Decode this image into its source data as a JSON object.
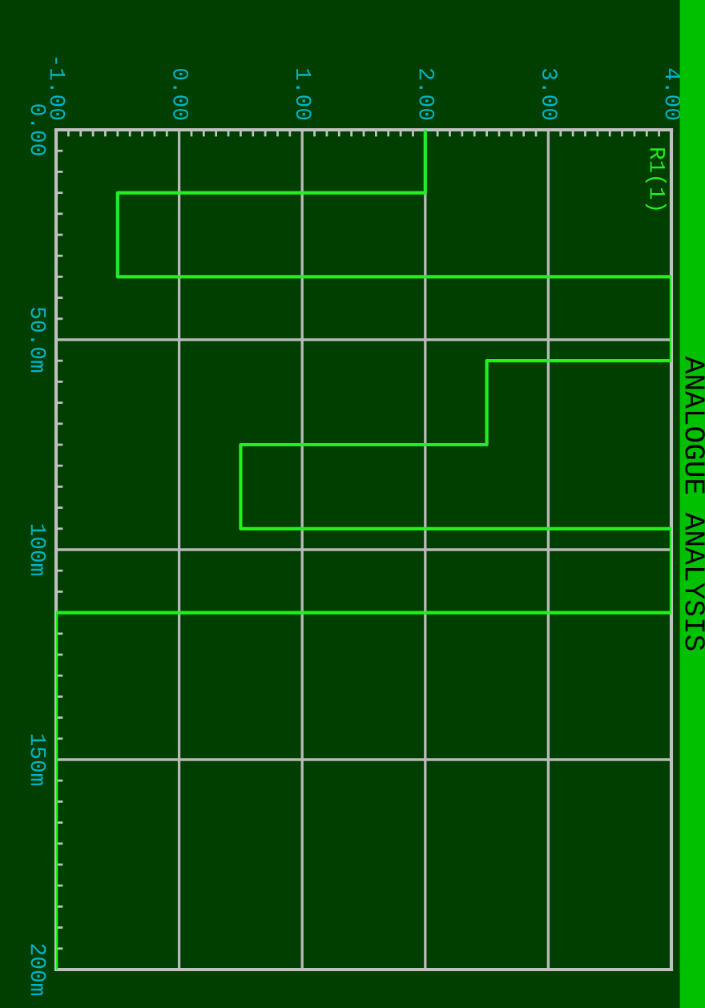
{
  "chart_data": {
    "type": "line",
    "title": "ANALOGUE ANALYSIS",
    "series": [
      {
        "name": "R1(1)",
        "color": "#22ee22",
        "x": [
          2,
          2,
          -0.5,
          -0.5,
          4,
          4,
          2.5,
          2.5,
          0.5,
          0.5,
          4,
          4,
          -1,
          -1
        ],
        "values": [
          0,
          15,
          15,
          35,
          35,
          55,
          55,
          75,
          75,
          95,
          95,
          115,
          115,
          200
        ]
      }
    ],
    "xlim": [
      -1,
      4
    ],
    "xticks": [
      {
        "value": -1,
        "label": "-1.00"
      },
      {
        "value": 0,
        "label": "0.00"
      },
      {
        "value": 1,
        "label": "1.00"
      },
      {
        "value": 2,
        "label": "2.00"
      },
      {
        "value": 3,
        "label": "3.00"
      },
      {
        "value": 4,
        "label": "4.00"
      }
    ],
    "ylim": [
      200,
      0
    ],
    "yticks": [
      {
        "value": 0,
        "label": "0.00"
      },
      {
        "value": 50,
        "label": "50.0m"
      },
      {
        "value": 100,
        "label": "100m"
      },
      {
        "value": 150,
        "label": "150m"
      },
      {
        "value": 200,
        "label": "200m"
      }
    ],
    "grid": true
  }
}
